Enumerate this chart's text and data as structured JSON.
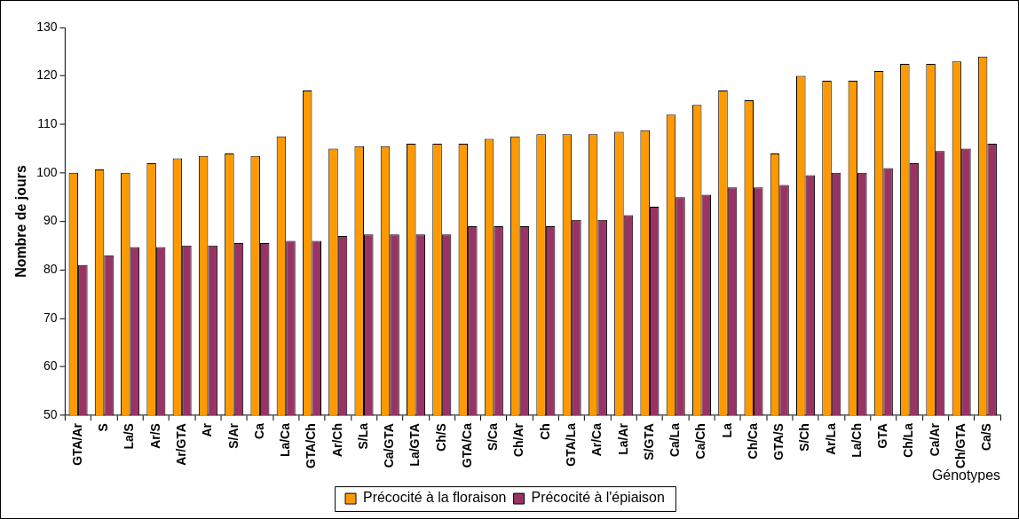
{
  "chart_data": {
    "type": "bar",
    "ylabel": "Nombre de jours",
    "xlabel": "Génotypes",
    "categories": [
      "GTA/Ar",
      "S",
      "La/S",
      "Ar/S",
      "Ar/GTA",
      "Ar",
      "S/Ar",
      "Ca",
      "La/Ca",
      "GTA/Ch",
      "Ar/Ch",
      "S/La",
      "Ca/GTA",
      "La/GTA",
      "Ch/S",
      "GTA/Ca",
      "S/Ca",
      "Ch/Ar",
      "Ch",
      "GTA/La",
      "Ar/Ca",
      "La/Ar",
      "S/GTA",
      "Ca/La",
      "Ca/Ch",
      "La",
      "Ch/Ca",
      "GTA/S",
      "S/Ch",
      "Ar/La",
      "La/Ch",
      "GTA",
      "Ch/La",
      "Ca/Ar",
      "Ch/GTA",
      "Ca/S"
    ],
    "series": [
      {
        "name": "Précocité à la floraison",
        "color": "#ff9900",
        "values": [
          100,
          100.7,
          100,
          102,
          103,
          103.5,
          104,
          103.5,
          107.5,
          117,
          105,
          105.5,
          105.5,
          106,
          106,
          106,
          107,
          107.5,
          108,
          108,
          108,
          108.5,
          108.8,
          112,
          114,
          117,
          115,
          104,
          120,
          119,
          119,
          121,
          122.5,
          122.5,
          123,
          124
        ]
      },
      {
        "name": "Précocité à l'épiaison",
        "color": "#993366",
        "values": [
          81,
          83,
          84.7,
          84.7,
          85,
          85,
          85.5,
          85.5,
          86,
          86,
          87,
          87.3,
          87.3,
          87.3,
          87.3,
          89,
          89,
          89,
          89,
          90.3,
          90.3,
          91.3,
          93,
          95,
          95.5,
          97,
          97,
          97.5,
          99.5,
          100,
          100,
          101,
          102,
          104.5,
          105,
          106
        ]
      }
    ],
    "ylim": [
      50,
      130
    ],
    "yticks": [
      50,
      60,
      70,
      80,
      90,
      100,
      110,
      120,
      130
    ],
    "grid": false,
    "legend": "bottom"
  }
}
